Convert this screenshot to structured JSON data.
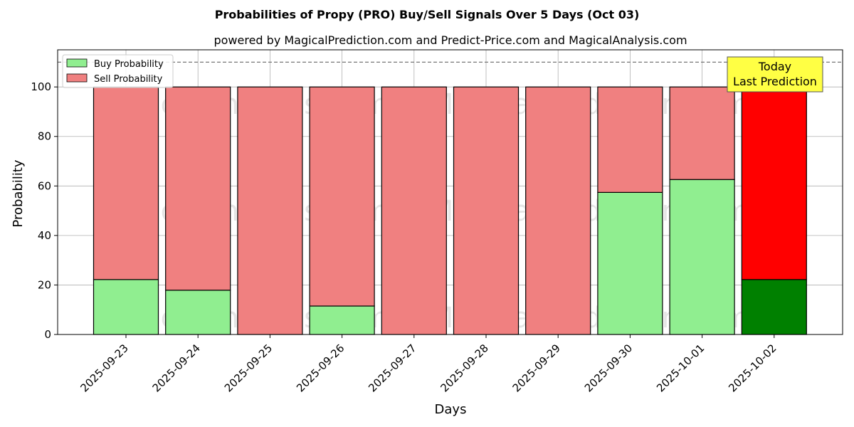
{
  "chart_data": {
    "type": "bar",
    "stacked": true,
    "title": "Probabilities of Propy (PRO) Buy/Sell Signals Over 5 Days (Oct 03)",
    "subtitle": "powered by MagicalPrediction.com and Predict-Price.com and MagicalAnalysis.com",
    "xlabel": "Days",
    "ylabel": "Probability",
    "ylim": [
      0,
      115
    ],
    "yticks": [
      0,
      20,
      40,
      60,
      80,
      100
    ],
    "reference_line": 110,
    "grid": true,
    "legend_position": "top-left",
    "categories": [
      "2025-09-23",
      "2025-09-24",
      "2025-09-25",
      "2025-09-26",
      "2025-09-27",
      "2025-09-28",
      "2025-09-29",
      "2025-09-30",
      "2025-10-01",
      "2025-10-02"
    ],
    "series": [
      {
        "name": "Buy Probability",
        "color": "#90ee90",
        "highlight_color": "#008000",
        "values": [
          22.2,
          17.9,
          0,
          11.5,
          0,
          0,
          0,
          57.4,
          62.6,
          22.2
        ]
      },
      {
        "name": "Sell Probability",
        "color": "#f08080",
        "highlight_color": "#ff0000",
        "values": [
          77.8,
          82.1,
          100,
          88.5,
          100,
          100,
          100,
          42.6,
          37.4,
          77.8
        ]
      }
    ],
    "highlight_index": 9,
    "annotation": {
      "line1": "Today",
      "line2": "Last Prediction",
      "color": "#ffff44"
    },
    "watermarks": [
      "MagicalAnalysis.com",
      "MagicalPrediction.com"
    ]
  }
}
